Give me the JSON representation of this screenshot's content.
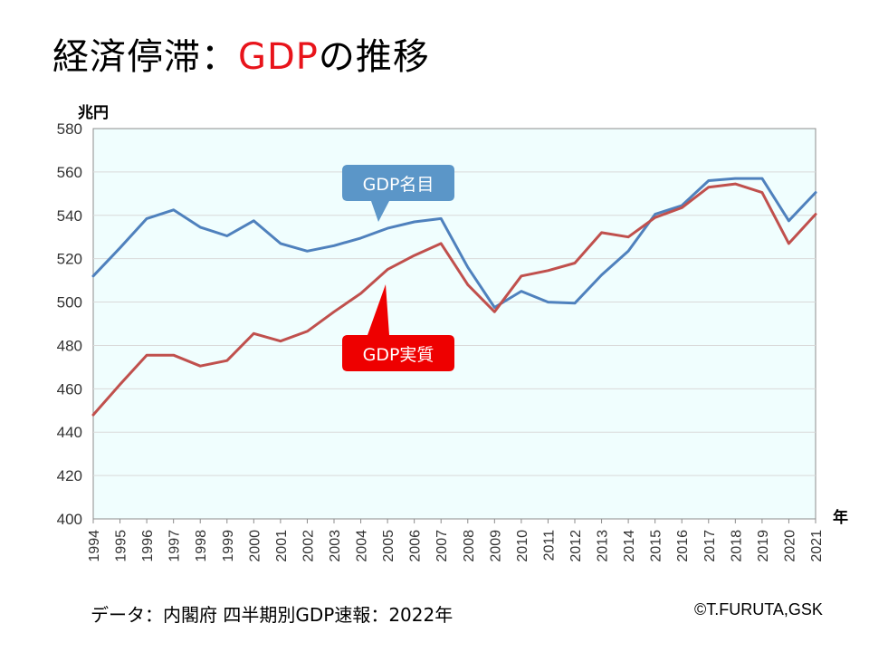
{
  "title": {
    "prefix": "経済停滞：",
    "accent": "GDP",
    "suffix": "の推移"
  },
  "colors": {
    "nominal": "#4f81bd",
    "real": "#c0504d",
    "plot_bg": "#f0fefe",
    "callout_nominal": "#5b96c8",
    "callout_real": "#ee0000",
    "accent": "#e8141b"
  },
  "chart_data": {
    "type": "line",
    "y_unit": "兆円",
    "x_unit": "年",
    "ylim": [
      400,
      580
    ],
    "yticks": [
      "400",
      "420",
      "440",
      "460",
      "480",
      "500",
      "520",
      "540",
      "560",
      "580"
    ],
    "grid": true,
    "categories": [
      "1994",
      "1995",
      "1996",
      "1997",
      "1998",
      "1999",
      "2000",
      "2001",
      "2002",
      "2003",
      "2004",
      "2005",
      "2006",
      "2007",
      "2008",
      "2009",
      "2010",
      "2011",
      "2012",
      "2013",
      "2014",
      "2015",
      "2016",
      "2017",
      "2018",
      "2019",
      "2020",
      "2021"
    ],
    "series": [
      {
        "name": "GDP名目",
        "color": "#4f81bd",
        "values": [
          512,
          525,
          538.5,
          542.5,
          534.5,
          530.5,
          537.5,
          527,
          523.5,
          526,
          529.5,
          534,
          537,
          538.5,
          516,
          497.5,
          505,
          500,
          499.5,
          512.5,
          523.5,
          540.5,
          544.5,
          556,
          557,
          557,
          537.5,
          550.5
        ]
      },
      {
        "name": "GDP実質",
        "color": "#c0504d",
        "values": [
          448,
          462,
          475.5,
          475.5,
          470.5,
          473,
          485.5,
          482,
          486.5,
          495.5,
          504,
          515,
          521.5,
          527,
          508,
          495.5,
          512,
          514.5,
          518,
          532,
          530,
          539,
          543.5,
          553,
          554.5,
          550.5,
          527,
          540.5
        ]
      }
    ]
  },
  "footer": {
    "source": "データ：内閣府 四半期別GDP速報：2022年",
    "credit": "©T.FURUTA,GSK"
  }
}
